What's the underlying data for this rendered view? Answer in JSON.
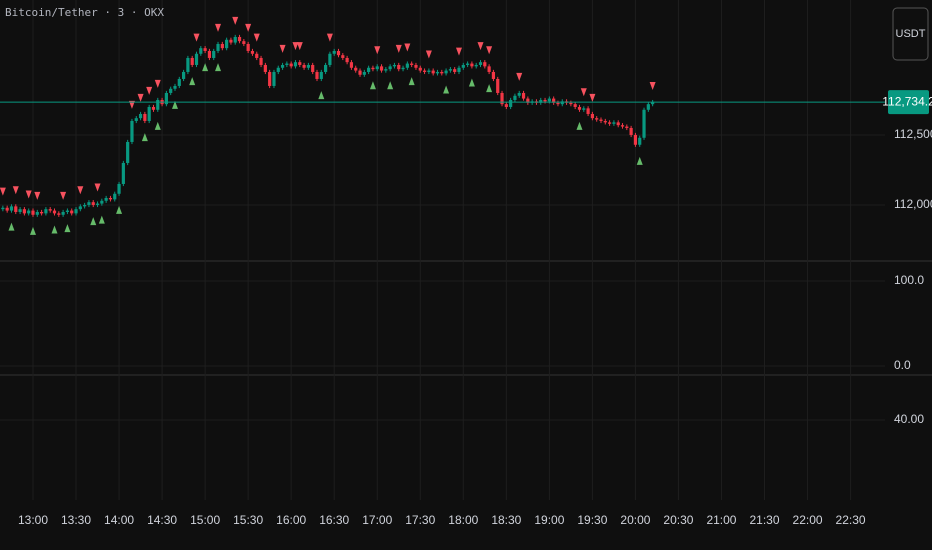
{
  "chart_data": [
    {
      "type": "candlestick",
      "title": "Bitcoin/Tether · 3 · OKX",
      "unit": "USDT",
      "up_color": "#089981",
      "down_color": "#f23645",
      "sell_color": "#f7525f",
      "buy_color": "#66bb6a",
      "x": [
        "12:39",
        "12:42",
        "12:45",
        "12:48",
        "12:51",
        "12:54",
        "12:57",
        "13:00",
        "13:03",
        "13:06",
        "13:09",
        "13:12",
        "13:15",
        "13:18",
        "13:21",
        "13:24",
        "13:27",
        "13:30",
        "13:33",
        "13:36",
        "13:39",
        "13:42",
        "13:45",
        "13:48",
        "13:51",
        "13:54",
        "13:57",
        "14:00",
        "14:03",
        "14:06",
        "14:09",
        "14:12",
        "14:15",
        "14:18",
        "14:21",
        "14:24",
        "14:27",
        "14:30",
        "14:33",
        "14:36",
        "14:39",
        "14:42",
        "14:45",
        "14:48",
        "14:51",
        "14:54",
        "14:57",
        "15:00",
        "15:03",
        "15:06",
        "15:09",
        "15:12",
        "15:15",
        "15:18",
        "15:21",
        "15:24",
        "15:27",
        "15:30",
        "15:33",
        "15:36",
        "15:39",
        "15:42",
        "15:45",
        "15:48",
        "15:51",
        "15:54",
        "15:57",
        "16:00",
        "16:03",
        "16:06",
        "16:09",
        "16:12",
        "16:15",
        "16:18",
        "16:21",
        "16:24",
        "16:27",
        "16:30",
        "16:33",
        "16:36",
        "16:39",
        "16:42",
        "16:45",
        "16:48",
        "16:51",
        "16:54",
        "16:57",
        "17:00",
        "17:03",
        "17:06",
        "17:09",
        "17:12",
        "17:15",
        "17:18",
        "17:21",
        "17:24",
        "17:27",
        "17:30",
        "17:33",
        "17:36",
        "17:39",
        "17:42",
        "17:45",
        "17:48",
        "17:51",
        "17:54",
        "17:57",
        "18:00",
        "18:03",
        "18:06",
        "18:09",
        "18:12",
        "18:15",
        "18:18",
        "18:21",
        "18:24",
        "18:27",
        "18:30",
        "18:33",
        "18:36",
        "18:39",
        "18:42",
        "18:45",
        "18:48",
        "18:51",
        "18:54",
        "18:57",
        "19:00",
        "19:03",
        "19:06",
        "19:09",
        "19:12",
        "19:15",
        "19:18",
        "19:21",
        "19:24",
        "19:27",
        "19:30",
        "19:33",
        "19:36",
        "19:39",
        "19:42",
        "19:45",
        "19:48",
        "19:51",
        "19:54",
        "19:57",
        "20:00",
        "20:03",
        "20:06",
        "20:09",
        "20:12"
      ],
      "open": [
        111970,
        111980,
        111960,
        111990,
        111950,
        111970,
        111940,
        111960,
        111930,
        111950,
        111940,
        111970,
        111960,
        111940,
        111930,
        111950,
        111960,
        111940,
        111970,
        111990,
        112000,
        112020,
        112000,
        112010,
        112030,
        112050,
        112040,
        112080,
        112150,
        112300,
        112450,
        112600,
        112620,
        112650,
        112600,
        112700,
        112680,
        112750,
        112720,
        112800,
        112830,
        112850,
        112900,
        112950,
        113050,
        113000,
        113080,
        113120,
        113100,
        113050,
        113100,
        113150,
        113120,
        113180,
        113160,
        113200,
        113170,
        113150,
        113100,
        113080,
        113050,
        113000,
        112950,
        112850,
        112950,
        112980,
        113000,
        113010,
        112990,
        113020,
        113000,
        112980,
        113000,
        112950,
        112900,
        112950,
        113000,
        113080,
        113100,
        113070,
        113050,
        113020,
        112980,
        112960,
        112930,
        112950,
        112980,
        112970,
        112990,
        112960,
        112970,
        112990,
        113000,
        112970,
        112980,
        113010,
        113000,
        112980,
        112960,
        112950,
        112960,
        112940,
        112950,
        112940,
        112960,
        112970,
        112950,
        112980,
        113000,
        113010,
        112990,
        113000,
        113020,
        112990,
        112950,
        112900,
        112800,
        112720,
        112700,
        112750,
        112780,
        112800,
        112760,
        112730,
        112740,
        112730,
        112750,
        112740,
        112760,
        112730,
        112720,
        112740,
        112730,
        112720,
        112700,
        112680,
        112690,
        112650,
        112620,
        112610,
        112600,
        112590,
        112580,
        112590,
        112570,
        112560,
        112550,
        112500,
        112430,
        112480,
        112680,
        112720
      ],
      "high": [
        111995,
        111995,
        112005,
        112005,
        111985,
        111985,
        111975,
        111975,
        111965,
        111965,
        111985,
        111985,
        111975,
        111955,
        111965,
        111975,
        111975,
        111985,
        112005,
        112015,
        112035,
        112035,
        112025,
        112045,
        112065,
        112065,
        112095,
        112165,
        112315,
        112465,
        112615,
        112635,
        112665,
        112665,
        112715,
        112715,
        112765,
        112765,
        112815,
        112845,
        112865,
        112915,
        112965,
        113065,
        113065,
        113095,
        113135,
        113135,
        113115,
        113115,
        113165,
        113165,
        113195,
        113195,
        113215,
        113215,
        113185,
        113165,
        113115,
        113095,
        113065,
        113015,
        112965,
        112965,
        112995,
        113015,
        113025,
        113025,
        113035,
        113035,
        113015,
        113015,
        113015,
        112965,
        112965,
        113015,
        113095,
        113115,
        113115,
        113085,
        113065,
        113035,
        112995,
        112975,
        112965,
        112995,
        112995,
        113005,
        113005,
        112985,
        113005,
        113015,
        113015,
        112995,
        113025,
        113025,
        113015,
        112995,
        112975,
        112975,
        112975,
        112965,
        112965,
        112975,
        112985,
        112985,
        112995,
        113015,
        113025,
        113025,
        113015,
        113035,
        113035,
        113005,
        112965,
        112915,
        112815,
        112735,
        112765,
        112795,
        112815,
        112815,
        112775,
        112755,
        112755,
        112765,
        112765,
        112775,
        112775,
        112745,
        112755,
        112755,
        112745,
        112735,
        112715,
        112705,
        112705,
        112665,
        112635,
        112625,
        112615,
        112605,
        112605,
        112605,
        112585,
        112575,
        112565,
        112515,
        112495,
        112695,
        112735,
        112750
      ],
      "low": [
        111955,
        111945,
        111945,
        111935,
        111935,
        111925,
        111925,
        111915,
        111915,
        111925,
        111925,
        111945,
        111925,
        111915,
        111915,
        111935,
        111925,
        111925,
        111955,
        111975,
        111985,
        111985,
        111985,
        111995,
        112015,
        112025,
        112025,
        112065,
        112135,
        112285,
        112435,
        112585,
        112605,
        112585,
        112585,
        112665,
        112665,
        112705,
        112705,
        112785,
        112815,
        112835,
        112885,
        112935,
        112985,
        112985,
        113065,
        113085,
        113035,
        113035,
        113085,
        113105,
        113105,
        113145,
        113145,
        113155,
        113135,
        113085,
        113065,
        113035,
        112985,
        112935,
        112835,
        112835,
        112935,
        112965,
        112985,
        112975,
        112975,
        112985,
        112965,
        112965,
        112935,
        112885,
        112885,
        112935,
        112985,
        113065,
        113055,
        113035,
        113005,
        112965,
        112945,
        112915,
        112915,
        112935,
        112955,
        112955,
        112945,
        112945,
        112955,
        112975,
        112955,
        112955,
        112965,
        112985,
        112965,
        112945,
        112935,
        112935,
        112925,
        112925,
        112925,
        112925,
        112945,
        112935,
        112935,
        112965,
        112985,
        112975,
        112975,
        112985,
        112975,
        112935,
        112885,
        112785,
        112705,
        112685,
        112685,
        112735,
        112765,
        112745,
        112715,
        112715,
        112715,
        112715,
        112725,
        112725,
        112715,
        112705,
        112705,
        112715,
        112705,
        112685,
        112665,
        112665,
        112635,
        112605,
        112595,
        112585,
        112575,
        112565,
        112565,
        112555,
        112545,
        112535,
        112485,
        112415,
        112415,
        112465,
        112665,
        112705
      ],
      "close": [
        111980,
        111960,
        111990,
        111950,
        111970,
        111940,
        111960,
        111930,
        111950,
        111940,
        111970,
        111960,
        111940,
        111930,
        111950,
        111960,
        111940,
        111970,
        111990,
        112000,
        112020,
        112000,
        112010,
        112030,
        112050,
        112040,
        112080,
        112150,
        112300,
        112450,
        112600,
        112620,
        112650,
        112600,
        112700,
        112680,
        112750,
        112720,
        112800,
        112830,
        112850,
        112900,
        112950,
        113050,
        113000,
        113080,
        113120,
        113100,
        113050,
        113100,
        113150,
        113120,
        113180,
        113160,
        113200,
        113170,
        113150,
        113100,
        113080,
        113050,
        113000,
        112950,
        112850,
        112950,
        112980,
        113000,
        113010,
        112990,
        113020,
        113000,
        112980,
        113000,
        112950,
        112900,
        112950,
        113000,
        113080,
        113100,
        113070,
        113050,
        113020,
        112980,
        112960,
        112930,
        112950,
        112980,
        112970,
        112990,
        112960,
        112970,
        112990,
        113000,
        112970,
        112980,
        113010,
        113000,
        112980,
        112960,
        112950,
        112960,
        112940,
        112950,
        112940,
        112960,
        112970,
        112950,
        112980,
        113000,
        113010,
        112990,
        113000,
        113020,
        112990,
        112950,
        112900,
        112800,
        112720,
        112700,
        112750,
        112780,
        112800,
        112760,
        112730,
        112740,
        112730,
        112750,
        112740,
        112760,
        112730,
        112720,
        112740,
        112730,
        112720,
        112700,
        112680,
        112690,
        112650,
        112620,
        112610,
        112600,
        112590,
        112580,
        112590,
        112570,
        112560,
        112550,
        112500,
        112430,
        112480,
        112680,
        112720,
        112734.2
      ],
      "sell_signals": [
        "12:39",
        "12:48",
        "12:57",
        "13:03",
        "13:21",
        "13:33",
        "13:45",
        "14:09",
        "14:15",
        "14:21",
        "14:27",
        "14:54",
        "15:09",
        "15:21",
        "15:30",
        "15:36",
        "15:54",
        "16:03",
        "16:06",
        "16:27",
        "17:00",
        "17:15",
        "17:21",
        "17:36",
        "17:57",
        "18:12",
        "18:18",
        "18:39",
        "19:24",
        "19:30",
        "20:12"
      ],
      "buy_signals": [
        "12:45",
        "13:00",
        "13:15",
        "13:24",
        "13:42",
        "13:48",
        "14:00",
        "14:18",
        "14:27",
        "14:39",
        "14:51",
        "15:00",
        "15:09",
        "16:21",
        "16:57",
        "17:09",
        "17:24",
        "17:48",
        "18:06",
        "18:18",
        "19:21",
        "20:03"
      ],
      "last_price": {
        "value": 112734.2,
        "label": "112,734.2"
      },
      "xlim": [
        "12:37",
        "22:54"
      ],
      "xticks": [
        "13:00",
        "13:30",
        "14:00",
        "14:30",
        "15:00",
        "15:30",
        "16:00",
        "16:30",
        "17:00",
        "17:30",
        "18:00",
        "18:30",
        "19:00",
        "19:30",
        "20:00",
        "20:30",
        "21:00",
        "21:30",
        "22:00",
        "22:30"
      ],
      "ylim": [
        111607,
        113464
      ],
      "yticks": [
        {
          "value": 112000,
          "label": "112,000.0"
        },
        {
          "value": 112500,
          "label": "112,500.0"
        }
      ],
      "grid": true
    },
    {
      "type": "indicator",
      "ylim": [
        -9.4,
        122.4
      ],
      "yticks": [
        {
          "value": 100,
          "label": "100.0"
        },
        {
          "value": 0,
          "label": "0.0"
        }
      ],
      "grid": true
    },
    {
      "type": "indicator",
      "ylim": [
        0,
        62
      ],
      "yticks": [
        {
          "value": 40,
          "label": "40.00"
        }
      ],
      "grid": true
    }
  ]
}
